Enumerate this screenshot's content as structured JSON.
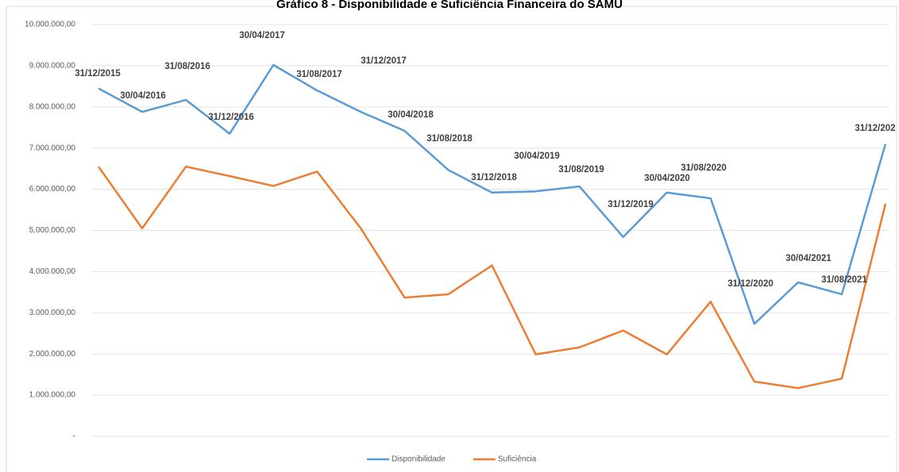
{
  "chart_data": {
    "type": "line",
    "title": "Gráfico 8 - Disponibilidade e Suficiência Financeira do SAMU",
    "categories": [
      "31/12/2015",
      "30/04/2016",
      "31/08/2016",
      "31/12/2016",
      "30/04/2017",
      "31/08/2017",
      "31/12/2017",
      "30/04/2018",
      "31/08/2018",
      "31/12/2018",
      "30/04/2019",
      "31/08/2019",
      "31/12/2019",
      "30/04/2020",
      "31/08/2020",
      "31/12/2020",
      "30/04/2021",
      "31/08/2021",
      "31/12/202"
    ],
    "series": [
      {
        "name": "Disponibilidade",
        "color": "#5b9bd5",
        "values": [
          8450000,
          7880000,
          8170000,
          7350000,
          9020000,
          8400000,
          7880000,
          7420000,
          6470000,
          5920000,
          5950000,
          6070000,
          4840000,
          5920000,
          5780000,
          2730000,
          3740000,
          3450000,
          7100000
        ]
      },
      {
        "name": "Suficiência",
        "color": "#ed7d31",
        "values": [
          6550000,
          5050000,
          6550000,
          6320000,
          6080000,
          6430000,
          5050000,
          3370000,
          3450000,
          4150000,
          1990000,
          2160000,
          2570000,
          1990000,
          3270000,
          1330000,
          1170000,
          1400000,
          5650000
        ]
      }
    ],
    "ylim": [
      0,
      10000000
    ],
    "yticks": [
      {
        "value": 0,
        "label": "-"
      },
      {
        "value": 1000000,
        "label": "1.000.000,00"
      },
      {
        "value": 2000000,
        "label": "2.000.000,00"
      },
      {
        "value": 3000000,
        "label": "3.000.000,00"
      },
      {
        "value": 4000000,
        "label": "4.000.000,00"
      },
      {
        "value": 5000000,
        "label": "5.000.000,00"
      },
      {
        "value": 6000000,
        "label": "6.000.000,00"
      },
      {
        "value": 7000000,
        "label": "7.000.000,00"
      },
      {
        "value": 8000000,
        "label": "8.000.000,00"
      },
      {
        "value": 9000000,
        "label": "9.000.000,00"
      },
      {
        "value": 10000000,
        "label": "10.000.000,00"
      }
    ],
    "grid": true,
    "legend": "bottom"
  }
}
